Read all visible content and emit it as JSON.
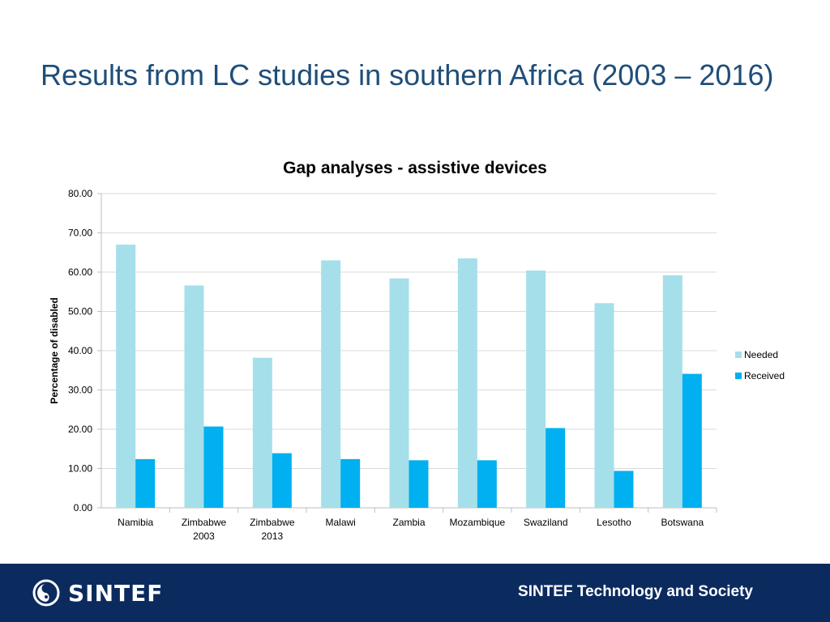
{
  "slide": {
    "title": "Results from LC studies in southern Africa (2003 – 2016)"
  },
  "footer": {
    "logo_text": "SINTEF",
    "caption": "SINTEF Technology and Society"
  },
  "colors": {
    "needed": "#a5dfea",
    "received": "#00b0f0",
    "footer_bg": "#0b2b5f",
    "title": "#1f4e79"
  },
  "chart_data": {
    "type": "bar",
    "title": "Gap analyses - assistive devices",
    "xlabel": "",
    "ylabel": "Percentage of disabled",
    "ylim": [
      0,
      80
    ],
    "yticks": [
      "0.00",
      "10.00",
      "20.00",
      "30.00",
      "40.00",
      "50.00",
      "60.00",
      "70.00",
      "80.00"
    ],
    "ytick_values": [
      0,
      10,
      20,
      30,
      40,
      50,
      60,
      70,
      80
    ],
    "grid": true,
    "legend_position": "right",
    "categories": [
      [
        "Namibia"
      ],
      [
        "Zimbabwe",
        "2003"
      ],
      [
        "Zimbabwe",
        "2013"
      ],
      [
        "Malawi"
      ],
      [
        "Zambia"
      ],
      [
        "Mozambique"
      ],
      [
        "Swaziland"
      ],
      [
        "Lesotho"
      ],
      [
        "Botswana"
      ]
    ],
    "series": [
      {
        "name": "Needed",
        "values": [
          67.0,
          56.6,
          38.2,
          63.0,
          58.4,
          63.5,
          60.4,
          52.1,
          59.2
        ]
      },
      {
        "name": "Received",
        "values": [
          12.4,
          20.7,
          13.9,
          12.4,
          12.1,
          12.1,
          20.3,
          9.4,
          34.1
        ]
      }
    ]
  }
}
